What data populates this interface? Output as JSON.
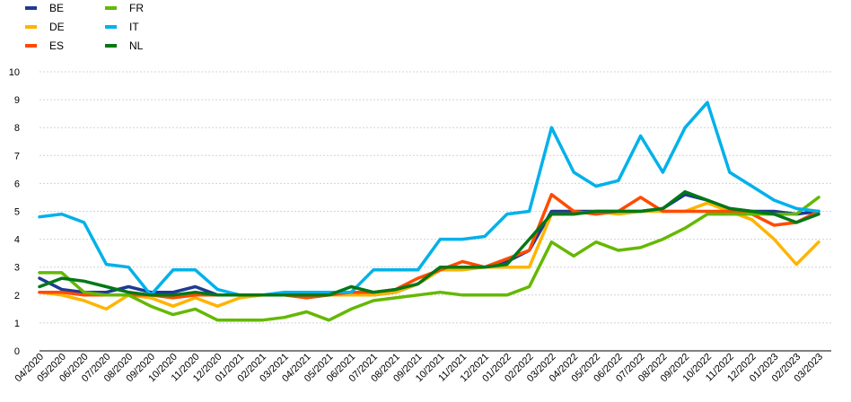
{
  "chart_data": {
    "type": "line",
    "title": "",
    "xlabel": "",
    "ylabel": "",
    "ylim": [
      0,
      10
    ],
    "yticks": [
      0,
      1,
      2,
      3,
      4,
      5,
      6,
      7,
      8,
      9,
      10
    ],
    "grid": "horizontal",
    "legend_position": "top-left",
    "categories": [
      "04/2020",
      "05/2020",
      "06/2020",
      "07/2020",
      "08/2020",
      "09/2020",
      "10/2020",
      "11/2020",
      "12/2020",
      "01/2021",
      "02/2021",
      "03/2021",
      "04/2021",
      "05/2021",
      "06/2021",
      "07/2021",
      "08/2021",
      "09/2021",
      "10/2021",
      "11/2021",
      "12/2021",
      "01/2022",
      "02/2022",
      "03/2022",
      "04/2022",
      "05/2022",
      "06/2022",
      "07/2022",
      "08/2022",
      "09/2022",
      "10/2022",
      "11/2022",
      "12/2022",
      "01/2023",
      "02/2023",
      "03/2023"
    ],
    "series": [
      {
        "name": "BE",
        "color": "#1f3a93",
        "values": [
          2.6,
          2.2,
          2.1,
          2.1,
          2.3,
          2.1,
          2.1,
          2.3,
          2.0,
          2.0,
          2.0,
          2.0,
          2.0,
          2.0,
          2.0,
          2.0,
          2.1,
          2.4,
          2.9,
          3.0,
          3.0,
          3.2,
          3.6,
          5.0,
          5.0,
          5.0,
          5.0,
          5.0,
          5.1,
          5.6,
          5.4,
          5.1,
          5.0,
          5.0,
          4.9,
          5.0
        ]
      },
      {
        "name": "DE",
        "color": "#ffb400",
        "values": [
          2.1,
          2.0,
          1.8,
          1.5,
          2.0,
          1.9,
          1.6,
          1.9,
          1.6,
          1.9,
          2.0,
          2.0,
          2.0,
          2.0,
          2.0,
          2.0,
          2.1,
          2.4,
          2.9,
          2.9,
          3.0,
          3.0,
          3.0,
          4.9,
          4.9,
          5.0,
          4.9,
          5.0,
          5.0,
          5.0,
          5.3,
          5.0,
          4.7,
          4.0,
          3.1,
          3.9
        ]
      },
      {
        "name": "ES",
        "color": "#ff4b00",
        "values": [
          2.1,
          2.1,
          2.0,
          2.0,
          2.0,
          2.0,
          1.9,
          2.0,
          2.0,
          2.0,
          2.0,
          2.0,
          1.9,
          2.0,
          2.1,
          2.1,
          2.2,
          2.6,
          2.9,
          3.2,
          3.0,
          3.3,
          3.6,
          5.6,
          5.0,
          4.9,
          5.0,
          5.5,
          5.0,
          5.0,
          5.0,
          5.0,
          4.9,
          4.5,
          4.6,
          5.0
        ]
      },
      {
        "name": "FR",
        "color": "#65b800",
        "values": [
          2.8,
          2.8,
          2.1,
          2.0,
          2.0,
          1.6,
          1.3,
          1.5,
          1.1,
          1.1,
          1.1,
          1.2,
          1.4,
          1.1,
          1.5,
          1.8,
          1.9,
          2.0,
          2.1,
          2.0,
          2.0,
          2.0,
          2.3,
          3.9,
          3.4,
          3.9,
          3.6,
          3.7,
          4.0,
          4.4,
          4.9,
          4.9,
          4.9,
          4.9,
          4.9,
          5.5
        ]
      },
      {
        "name": "IT",
        "color": "#00b1ea",
        "values": [
          4.8,
          4.9,
          4.6,
          3.1,
          3.0,
          2.0,
          2.9,
          2.9,
          2.2,
          2.0,
          2.0,
          2.1,
          2.1,
          2.1,
          2.1,
          2.9,
          2.9,
          2.9,
          4.0,
          4.0,
          4.1,
          4.9,
          5.0,
          8.0,
          6.4,
          5.9,
          6.1,
          7.7,
          6.4,
          8.0,
          8.9,
          6.4,
          5.9,
          5.4,
          5.1,
          5.0
        ]
      },
      {
        "name": "NL",
        "color": "#007816",
        "values": [
          2.3,
          2.6,
          2.5,
          2.3,
          2.1,
          2.0,
          2.0,
          2.1,
          2.0,
          2.0,
          2.0,
          2.0,
          2.0,
          2.0,
          2.3,
          2.1,
          2.2,
          2.4,
          3.0,
          3.0,
          3.0,
          3.1,
          4.0,
          4.9,
          4.9,
          5.0,
          5.0,
          5.0,
          5.1,
          5.7,
          5.4,
          5.1,
          5.0,
          4.9,
          4.6,
          4.9
        ]
      }
    ]
  }
}
